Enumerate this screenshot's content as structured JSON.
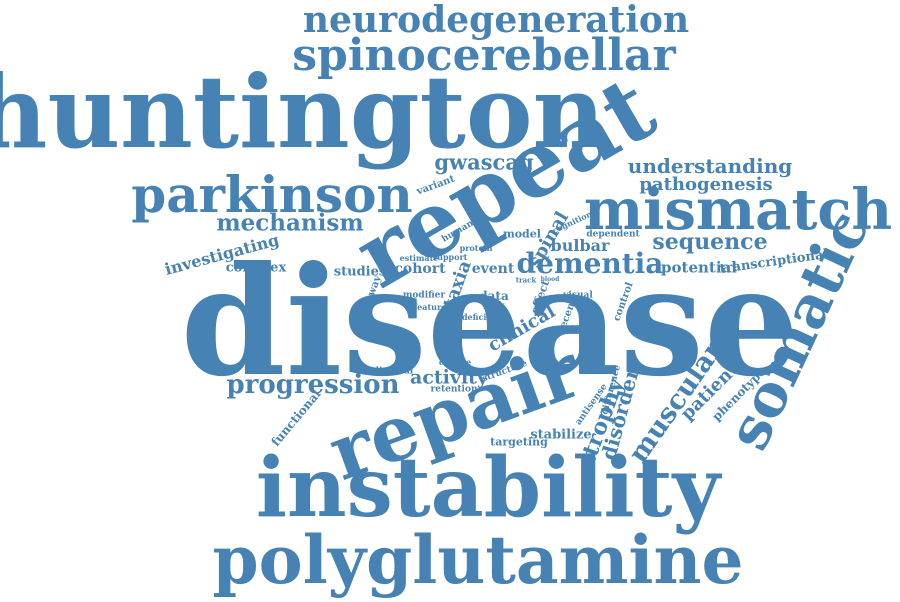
{
  "word_color": "#4682b4",
  "words": [
    {
      "name": "word-neurodegeneration",
      "text": "neurodegeneration"
    },
    {
      "name": "word-spinocerebellar",
      "text": "spinocerebellar"
    },
    {
      "name": "word-huntington",
      "text": "huntington"
    },
    {
      "name": "word-repeat",
      "text": "repeat"
    },
    {
      "name": "word-parkinson",
      "text": "parkinson"
    },
    {
      "name": "word-gwascag",
      "text": "gwascag"
    },
    {
      "name": "word-understanding",
      "text": "understanding"
    },
    {
      "name": "word-pathogenesis",
      "text": "pathogenesis"
    },
    {
      "name": "word-mismatch",
      "text": "mismatch"
    },
    {
      "name": "word-variant",
      "text": "variant"
    },
    {
      "name": "word-mechanism",
      "text": "mechanism"
    },
    {
      "name": "word-human",
      "text": "human"
    },
    {
      "name": "word-cognition",
      "text": "cognition"
    },
    {
      "name": "word-dependent",
      "text": "dependent"
    },
    {
      "name": "word-model",
      "text": "model"
    },
    {
      "name": "word-spinal",
      "text": "spinal"
    },
    {
      "name": "word-sequence",
      "text": "sequence"
    },
    {
      "name": "word-investigating",
      "text": "investigating"
    },
    {
      "name": "word-protein",
      "text": "protein"
    },
    {
      "name": "word-bulbar",
      "text": "bulbar"
    },
    {
      "name": "word-transcriptional",
      "text": "transcriptional"
    },
    {
      "name": "word-complex",
      "text": "complex"
    },
    {
      "name": "word-estimate",
      "text": "estimate"
    },
    {
      "name": "word-support",
      "text": "support"
    },
    {
      "name": "word-dementia",
      "text": "dementia"
    },
    {
      "name": "word-potential",
      "text": "potential"
    },
    {
      "name": "word-studies",
      "text": "studies"
    },
    {
      "name": "word-cohort",
      "text": "cohort"
    },
    {
      "name": "word-event",
      "text": "event"
    },
    {
      "name": "word-disease",
      "text": "disease"
    },
    {
      "name": "word-somatic",
      "text": "somatic"
    },
    {
      "name": "word-pathway",
      "text": "pathway"
    },
    {
      "name": "word-modifier",
      "text": "modifier"
    },
    {
      "name": "word-ataxia",
      "text": "ataxia"
    },
    {
      "name": "word-track",
      "text": "track"
    },
    {
      "name": "word-blood",
      "text": "blood"
    },
    {
      "name": "word-effect",
      "text": "effect"
    },
    {
      "name": "word-data",
      "text": "data"
    },
    {
      "name": "word-risk",
      "text": "risk"
    },
    {
      "name": "word-feature",
      "text": "feature"
    },
    {
      "name": "word-visual",
      "text": "visual"
    },
    {
      "name": "word-control",
      "text": "control"
    },
    {
      "name": "word-clinical",
      "text": "clinical"
    },
    {
      "name": "word-recent",
      "text": "recent"
    },
    {
      "name": "word-more",
      "text": "more"
    },
    {
      "name": "word-deficit",
      "text": "deficit"
    },
    {
      "name": "word-change",
      "text": "change"
    },
    {
      "name": "word-progression",
      "text": "progression"
    },
    {
      "name": "word-activity",
      "text": "activity"
    },
    {
      "name": "word-individual",
      "text": "individual"
    },
    {
      "name": "word-structure",
      "text": "structure"
    },
    {
      "name": "word-retention",
      "text": "retention"
    },
    {
      "name": "word-antisense",
      "text": "antisense"
    },
    {
      "name": "word-difference",
      "text": "difference"
    },
    {
      "name": "word-disorder",
      "text": "disorder"
    },
    {
      "name": "word-muscular",
      "text": "muscular"
    },
    {
      "name": "word-patient",
      "text": "patient"
    },
    {
      "name": "word-phenotype",
      "text": "phenotype"
    },
    {
      "name": "word-functional",
      "text": "functional"
    },
    {
      "name": "word-repair",
      "text": "repair"
    },
    {
      "name": "word-atrophy",
      "text": "atrophy"
    },
    {
      "name": "word-stabilize",
      "text": "stabilize"
    },
    {
      "name": "word-targeting",
      "text": "targeting"
    },
    {
      "name": "word-instability",
      "text": "instability"
    },
    {
      "name": "word-polyglutamine",
      "text": "polyglutamine"
    }
  ]
}
